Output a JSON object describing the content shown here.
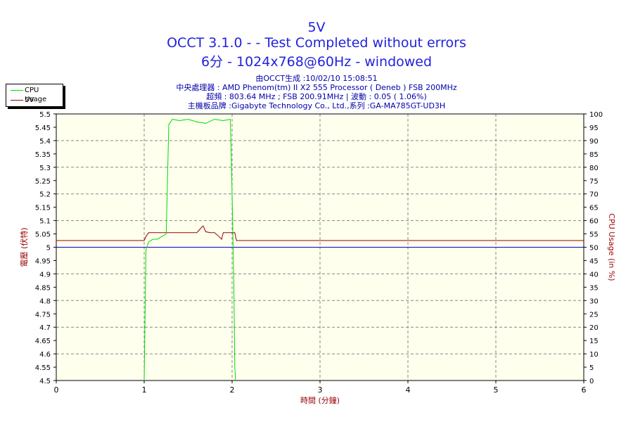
{
  "title": {
    "line1": "5V",
    "line2": "OCCT 3.1.0 -  - Test Completed without errors",
    "line3": "6分 - 1024x768@60Hz - windowed"
  },
  "info": {
    "line1": "由OCCT生成 :10/02/10 15:08:51",
    "line2": "中央處理器 : AMD Phenom(tm) II X2 555 Processor ( Deneb ) FSB 200MHz",
    "line3": "超頻 : 803.64 MHz ; FSB 200.91MHz | 波動 : 0.05 ( 1.06%)",
    "line4": "主機板品牌 :Gigabyte Technology Co., Ltd.,系列 :GA-MA785GT-UD3H"
  },
  "legend": [
    {
      "label": "CPU Usage",
      "color": "#00dd00"
    },
    {
      "label": "5V",
      "color": "#990000"
    }
  ],
  "chart_data": {
    "type": "line",
    "xlabel": "時間 (分鐘)",
    "ylabel_left": "電壓 (伏特)",
    "ylabel_right": "CPU Usage (in %)",
    "xlim": [
      0,
      6
    ],
    "ylim_left": [
      4.5,
      5.5
    ],
    "ylim_right": [
      0,
      100
    ],
    "x_ticks": [
      "0",
      "1",
      "2",
      "3",
      "4",
      "5",
      "6"
    ],
    "y_left_ticks": [
      "5.5",
      "5.45",
      "5.4",
      "5.35",
      "5.3",
      "5.25",
      "5.2",
      "5.15",
      "5.1",
      "5.05",
      "5",
      "4.95",
      "4.9",
      "4.85",
      "4.8",
      "4.75",
      "4.7",
      "4.65",
      "4.6",
      "4.55",
      "4.5"
    ],
    "y_right_ticks": [
      "100",
      "95",
      "90",
      "85",
      "80",
      "75",
      "70",
      "65",
      "60",
      "55",
      "50",
      "45",
      "40",
      "35",
      "30",
      "25",
      "20",
      "15",
      "10",
      "5",
      "0"
    ],
    "grid": true,
    "reference_line": {
      "y": 5.0,
      "color": "#0000cc"
    },
    "series": [
      {
        "name": "5V",
        "axis": "left",
        "color": "#990000",
        "x": [
          0,
          1.0,
          1.02,
          1.05,
          1.3,
          1.6,
          1.64,
          1.67,
          1.7,
          1.75,
          1.8,
          1.85,
          1.88,
          1.9,
          2.03,
          2.05,
          6
        ],
        "y": [
          5.025,
          5.025,
          5.04,
          5.055,
          5.055,
          5.055,
          5.07,
          5.08,
          5.058,
          5.055,
          5.055,
          5.04,
          5.03,
          5.055,
          5.055,
          5.025,
          5.025
        ]
      },
      {
        "name": "CPU Usage",
        "axis": "right",
        "color": "#00dd00",
        "x": [
          1.0,
          1.02,
          1.05,
          1.1,
          1.15,
          1.2,
          1.25,
          1.28,
          1.32,
          1.4,
          1.5,
          1.6,
          1.7,
          1.8,
          1.9,
          1.98,
          2.0,
          2.02,
          2.03,
          2.04
        ],
        "y": [
          0,
          49,
          52,
          53,
          53,
          54,
          55,
          96,
          98,
          97.5,
          98,
          97,
          96.5,
          98,
          97.5,
          98,
          70,
          35,
          5,
          0
        ]
      }
    ]
  }
}
